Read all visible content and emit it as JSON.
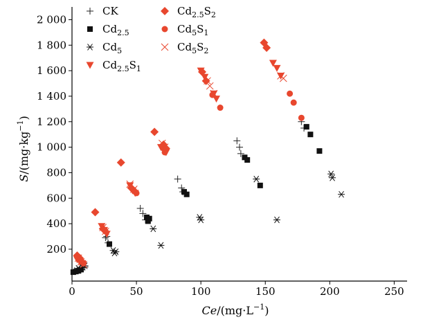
{
  "chart_data": {
    "type": "scatter",
    "title": "",
    "xlabel": "Ce/(mg·L⁻¹)",
    "ylabel": "S/(mg·kg⁻¹)",
    "xlabel_parts": {
      "italic": "Ce",
      "rest": "/(mg·L",
      "sup": "−1",
      "end": ")"
    },
    "ylabel_parts": {
      "italic": "S",
      "rest": "/(mg·kg",
      "sup": "−1",
      "end": ")"
    },
    "xlim": [
      0,
      260
    ],
    "ylim": [
      -50,
      2100
    ],
    "xticks": [
      0,
      50,
      100,
      150,
      200,
      250
    ],
    "xtick_labels": [
      "0",
      "50",
      "100",
      "150",
      "200",
      "250"
    ],
    "yticks": [
      200,
      400,
      600,
      800,
      1000,
      1200,
      1400,
      1600,
      1800,
      2000
    ],
    "ytick_labels": [
      "200",
      "400",
      "600",
      "800",
      "1 000",
      "1 200",
      "1 400",
      "1 600",
      "1 800",
      "2 000"
    ],
    "grid": false,
    "legend_position": "top-left",
    "series": [
      {
        "name": "CK",
        "name_base": "CK",
        "name_sub": "",
        "name_mid": "",
        "name_sub2": "",
        "marker": "plus",
        "color": "#222222",
        "points": [
          [
            2,
            30
          ],
          [
            4,
            40
          ],
          [
            6,
            45
          ],
          [
            8,
            55
          ],
          [
            10,
            60
          ],
          [
            26,
            290
          ],
          [
            27,
            300
          ],
          [
            28,
            250
          ],
          [
            53,
            520
          ],
          [
            55,
            480
          ],
          [
            57,
            430
          ],
          [
            82,
            750
          ],
          [
            85,
            680
          ],
          [
            86,
            650
          ],
          [
            128,
            1050
          ],
          [
            130,
            1000
          ],
          [
            131,
            950
          ],
          [
            178,
            1200
          ],
          [
            180,
            1150
          ]
        ]
      },
      {
        "name": "Cd2.5",
        "name_base": "Cd",
        "name_sub": "2.5",
        "name_mid": "",
        "name_sub2": "",
        "marker": "square",
        "color": "#111111",
        "points": [
          [
            1,
            20
          ],
          [
            3,
            25
          ],
          [
            5,
            30
          ],
          [
            7,
            40
          ],
          [
            29,
            240
          ],
          [
            58,
            450
          ],
          [
            59,
            420
          ],
          [
            60,
            440
          ],
          [
            87,
            650
          ],
          [
            89,
            630
          ],
          [
            134,
            920
          ],
          [
            136,
            900
          ],
          [
            146,
            700
          ],
          [
            182,
            1160
          ],
          [
            185,
            1100
          ],
          [
            192,
            970
          ]
        ]
      },
      {
        "name": "Cd5",
        "name_base": "Cd",
        "name_sub": "5",
        "name_mid": "",
        "name_sub2": "",
        "marker": "asterisk",
        "color": "#111111",
        "points": [
          [
            5,
            50
          ],
          [
            8,
            60
          ],
          [
            10,
            70
          ],
          [
            32,
            190
          ],
          [
            33,
            170
          ],
          [
            34,
            180
          ],
          [
            63,
            360
          ],
          [
            69,
            230
          ],
          [
            99,
            450
          ],
          [
            100,
            430
          ],
          [
            143,
            750
          ],
          [
            159,
            430
          ],
          [
            201,
            790
          ],
          [
            202,
            760
          ],
          [
            209,
            630
          ]
        ]
      },
      {
        "name": "Cd2.5S1",
        "name_base": "Cd",
        "name_sub": "2.5",
        "name_mid": "S",
        "name_sub2": "1",
        "marker": "triangle-down",
        "color": "#e8472e",
        "points": [
          [
            4,
            120
          ],
          [
            6,
            100
          ],
          [
            8,
            90
          ],
          [
            23,
            380
          ],
          [
            25,
            350
          ],
          [
            27,
            320
          ],
          [
            45,
            700
          ],
          [
            47,
            660
          ],
          [
            49,
            640
          ],
          [
            69,
            1000
          ],
          [
            71,
            980
          ],
          [
            73,
            960
          ],
          [
            100,
            1600
          ],
          [
            103,
            1550
          ],
          [
            110,
            1420
          ],
          [
            112,
            1380
          ],
          [
            156,
            1660
          ],
          [
            159,
            1620
          ],
          [
            162,
            1560
          ]
        ]
      },
      {
        "name": "Cd2.5S2",
        "name_base": "Cd",
        "name_sub": "2.5",
        "name_mid": "S",
        "name_sub2": "2",
        "marker": "diamond",
        "color": "#e8472e",
        "points": [
          [
            4,
            150
          ],
          [
            6,
            130
          ],
          [
            18,
            490
          ],
          [
            24,
            360
          ],
          [
            38,
            880
          ],
          [
            46,
            680
          ],
          [
            48,
            660
          ],
          [
            64,
            1120
          ],
          [
            71,
            1020
          ],
          [
            73,
            990
          ],
          [
            101,
            1590
          ],
          [
            104,
            1520
          ],
          [
            149,
            1820
          ],
          [
            151,
            1780
          ]
        ]
      },
      {
        "name": "Cd5S1",
        "name_base": "Cd",
        "name_sub": "5",
        "name_mid": "S",
        "name_sub2": "1",
        "marker": "circle",
        "color": "#e8472e",
        "points": [
          [
            5,
            140
          ],
          [
            7,
            110
          ],
          [
            9,
            90
          ],
          [
            26,
            340
          ],
          [
            50,
            640
          ],
          [
            72,
            960
          ],
          [
            109,
            1410
          ],
          [
            115,
            1310
          ],
          [
            169,
            1420
          ],
          [
            172,
            1350
          ],
          [
            178,
            1230
          ]
        ]
      },
      {
        "name": "Cd5S2",
        "name_base": "Cd",
        "name_sub": "5",
        "name_mid": "S",
        "name_sub2": "2",
        "marker": "x",
        "color": "#e8472e",
        "points": [
          [
            5,
            130
          ],
          [
            7,
            100
          ],
          [
            9,
            80
          ],
          [
            24,
            370
          ],
          [
            26,
            340
          ],
          [
            45,
            710
          ],
          [
            48,
            670
          ],
          [
            70,
            1030
          ],
          [
            72,
            1000
          ],
          [
            105,
            1520
          ],
          [
            107,
            1480
          ],
          [
            110,
            1420
          ],
          [
            162,
            1560
          ],
          [
            164,
            1540
          ]
        ]
      }
    ]
  }
}
